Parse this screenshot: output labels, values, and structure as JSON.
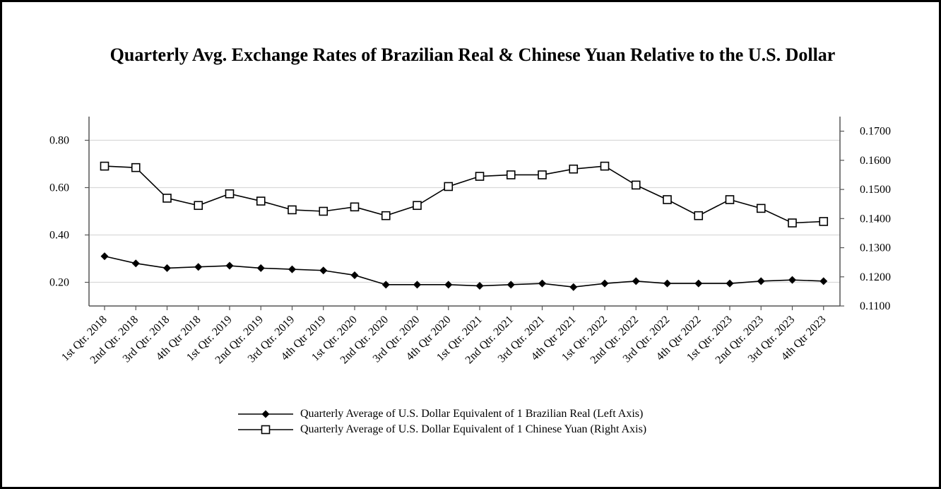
{
  "chart_data": {
    "type": "line",
    "title": "Quarterly Avg. Exchange Rates of Brazilian Real & Chinese Yuan Relative to the U.S. Dollar",
    "categories": [
      "1st Qtr. 2018",
      "2nd Qtr. 2018",
      "3rd Qtr. 2018",
      "4th Qtr 2018",
      "1st Qtr. 2019",
      "2nd Qtr. 2019",
      "3rd Qtr. 2019",
      "4th Qtr 2019",
      "1st Qtr. 2020",
      "2nd Qtr. 2020",
      "3rd Qtr. 2020",
      "4th Qtr 2020",
      "1st Qtr. 2021",
      "2nd Qtr. 2021",
      "3rd Qtr. 2021",
      "4th Qtr 2021",
      "1st Qtr. 2022",
      "2nd Qtr. 2022",
      "3rd Qtr. 2022",
      "4th Qtr 2022",
      "1st Qtr. 2023",
      "2nd Qtr. 2023",
      "3rd Qtr. 2023",
      "4th Qtr 2023"
    ],
    "series": [
      {
        "name": "Quarterly Average of U.S. Dollar Equivalent of 1 Brazilian Real (Left Axis)",
        "axis": "left",
        "marker": "filled-diamond",
        "values": [
          0.31,
          0.28,
          0.26,
          0.265,
          0.27,
          0.26,
          0.255,
          0.25,
          0.23,
          0.19,
          0.19,
          0.19,
          0.185,
          0.19,
          0.195,
          0.18,
          0.195,
          0.205,
          0.195,
          0.195,
          0.195,
          0.205,
          0.21,
          0.205
        ]
      },
      {
        "name": "Quarterly Average of U.S. Dollar Equivalent of 1 Chinese Yuan (Right Axis)",
        "axis": "right",
        "marker": "hollow-square",
        "values": [
          0.158,
          0.1575,
          0.147,
          0.1445,
          0.1485,
          0.146,
          0.143,
          0.1425,
          0.144,
          0.141,
          0.1445,
          0.151,
          0.1545,
          0.155,
          0.155,
          0.157,
          0.158,
          0.1515,
          0.1465,
          0.141,
          0.1465,
          0.1435,
          0.1385,
          0.139
        ]
      }
    ],
    "left_axis": {
      "ylim": [
        0.1,
        0.9
      ],
      "ticks": [
        0.2,
        0.4,
        0.6,
        0.8
      ],
      "tick_labels": [
        "0.20",
        "0.40",
        "0.60",
        "0.80"
      ]
    },
    "right_axis": {
      "ylim": [
        0.11,
        0.175
      ],
      "ticks": [
        0.11,
        0.12,
        0.13,
        0.14,
        0.15,
        0.16,
        0.17
      ],
      "tick_labels": [
        "0.1100",
        "0.1200",
        "0.1300",
        "0.1400",
        "0.1500",
        "0.1600",
        "0.1700"
      ]
    },
    "grid": true,
    "legend_position": "bottom-center"
  }
}
